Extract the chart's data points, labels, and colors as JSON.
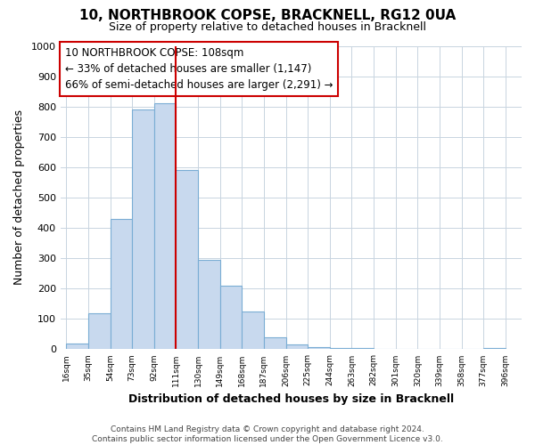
{
  "title": "10, NORTHBROOK COPSE, BRACKNELL, RG12 0UA",
  "subtitle": "Size of property relative to detached houses in Bracknell",
  "xlabel": "Distribution of detached houses by size in Bracknell",
  "ylabel": "Number of detached properties",
  "bar_edges": [
    16,
    35,
    54,
    73,
    92,
    111,
    130,
    149,
    168,
    187,
    206,
    225,
    244,
    263,
    282,
    301,
    320,
    339,
    358,
    377,
    396
  ],
  "bar_heights": [
    18,
    120,
    430,
    790,
    810,
    590,
    295,
    210,
    125,
    40,
    15,
    8,
    5,
    3,
    1,
    1,
    0,
    0,
    0,
    5
  ],
  "bar_color": "#c8d9ee",
  "bar_edge_color": "#7aadd4",
  "vline_x": 111,
  "vline_color": "#cc0000",
  "annotation_line1": "10 NORTHBROOK COPSE: 108sqm",
  "annotation_line2": "← 33% of detached houses are smaller (1,147)",
  "annotation_line3": "66% of semi-detached houses are larger (2,291) →",
  "ylim": [
    0,
    1000
  ],
  "yticks": [
    0,
    100,
    200,
    300,
    400,
    500,
    600,
    700,
    800,
    900,
    1000
  ],
  "tick_labels": [
    "16sqm",
    "35sqm",
    "54sqm",
    "73sqm",
    "92sqm",
    "111sqm",
    "130sqm",
    "149sqm",
    "168sqm",
    "187sqm",
    "206sqm",
    "225sqm",
    "244sqm",
    "263sqm",
    "282sqm",
    "301sqm",
    "320sqm",
    "339sqm",
    "358sqm",
    "377sqm",
    "396sqm"
  ],
  "footer_line1": "Contains HM Land Registry data © Crown copyright and database right 2024.",
  "footer_line2": "Contains public sector information licensed under the Open Government Licence v3.0.",
  "background_color": "#ffffff",
  "grid_color": "#c8d4e0",
  "annotation_fontsize": 8.5,
  "title_fontsize": 11,
  "subtitle_fontsize": 9,
  "ylabel_fontsize": 9,
  "xlabel_fontsize": 9,
  "footer_fontsize": 6.5
}
